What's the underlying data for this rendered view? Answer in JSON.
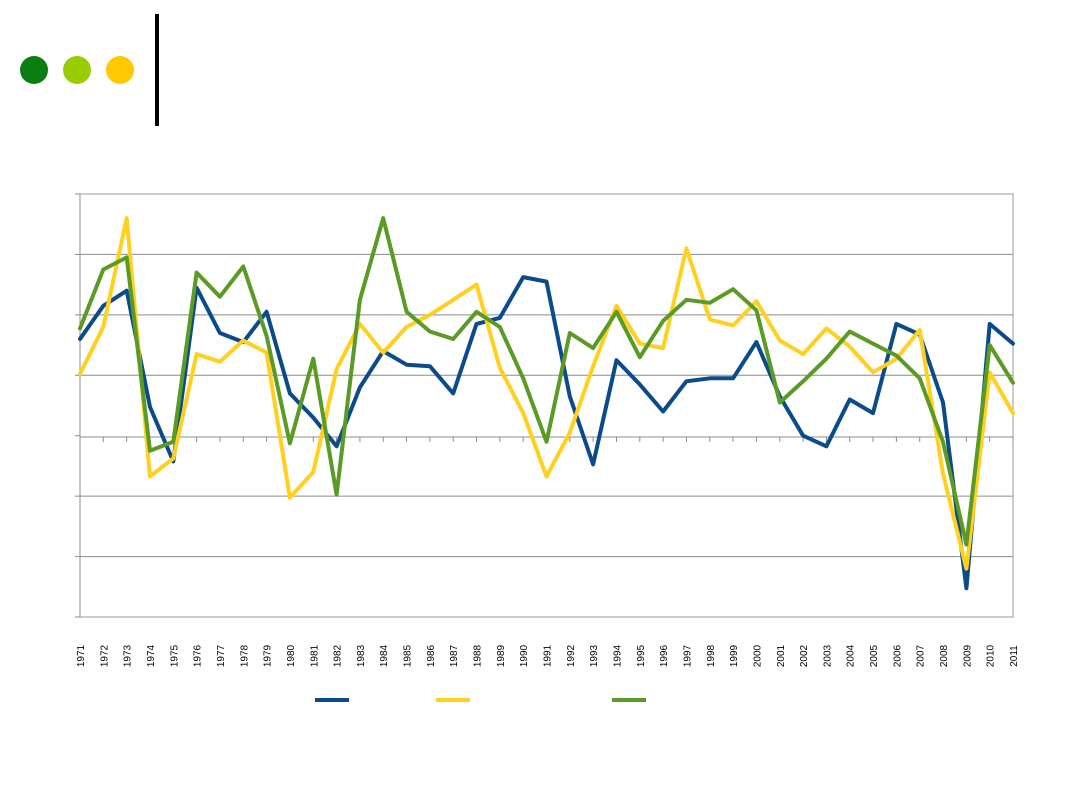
{
  "header": {
    "dots": [
      {
        "name": "dark-green-dot",
        "color": "#0a7d13"
      },
      {
        "name": "lime-dot",
        "color": "#99cc00"
      },
      {
        "name": "yellow-dot",
        "color": "#ffc800"
      }
    ]
  },
  "chart_data": {
    "type": "line",
    "title": "",
    "xlabel": "",
    "ylabel": "",
    "ylim": [
      -6,
      8
    ],
    "grid": true,
    "legend_placement": "bottom",
    "x": [
      "1971",
      "1972",
      "1973",
      "1974",
      "1975",
      "1976",
      "1977",
      "1978",
      "1979",
      "1980",
      "1981",
      "1982",
      "1983",
      "1984",
      "1985",
      "1986",
      "1987",
      "1988",
      "1989",
      "1990",
      "1991",
      "1992",
      "1993",
      "1994",
      "1995",
      "1996",
      "1997",
      "1998",
      "1999",
      "2000",
      "2001",
      "2002",
      "2003",
      "2004",
      "2005",
      "2006",
      "2007",
      "2008",
      "2009",
      "2010",
      "2011"
    ],
    "series": [
      {
        "color": "#0b4a8b",
        "values": [
          3.2,
          4.3,
          4.8,
          0.95,
          -0.85,
          4.9,
          3.4,
          3.1,
          4.1,
          1.4,
          0.6,
          -0.35,
          1.6,
          2.8,
          2.35,
          2.3,
          1.4,
          3.7,
          3.9,
          5.25,
          5.1,
          1.3,
          -0.95,
          2.5,
          1.7,
          0.8,
          1.8,
          1.9,
          1.9,
          3.1,
          1.3,
          0.0,
          -0.35,
          1.2,
          0.75,
          3.7,
          3.35,
          1.1,
          -5.05,
          3.7,
          3.05
        ]
      },
      {
        "color": "#ffd020",
        "values": [
          2.05,
          3.6,
          7.2,
          -1.35,
          -0.75,
          2.7,
          2.45,
          3.15,
          2.75,
          -2.05,
          -1.2,
          2.2,
          3.7,
          2.75,
          3.6,
          4.0,
          4.5,
          5.0,
          2.25,
          0.75,
          -1.35,
          0.1,
          2.3,
          4.3,
          3.05,
          2.9,
          6.2,
          3.85,
          3.65,
          4.45,
          3.15,
          2.7,
          3.55,
          2.95,
          2.1,
          2.55,
          3.5,
          -1.25,
          -4.4,
          2.1,
          0.75
        ]
      },
      {
        "color": "#5a9a25",
        "values": [
          3.55,
          5.5,
          5.9,
          -0.5,
          -0.2,
          5.4,
          4.6,
          5.6,
          3.3,
          -0.25,
          2.55,
          -1.95,
          4.5,
          7.2,
          4.1,
          3.45,
          3.2,
          4.1,
          3.6,
          1.9,
          -0.2,
          3.4,
          2.9,
          4.1,
          2.6,
          3.8,
          4.5,
          4.4,
          4.85,
          4.15,
          1.1,
          1.8,
          2.55,
          3.45,
          3.05,
          2.65,
          1.9,
          -0.2,
          -3.6,
          3.0,
          1.75
        ]
      }
    ]
  }
}
